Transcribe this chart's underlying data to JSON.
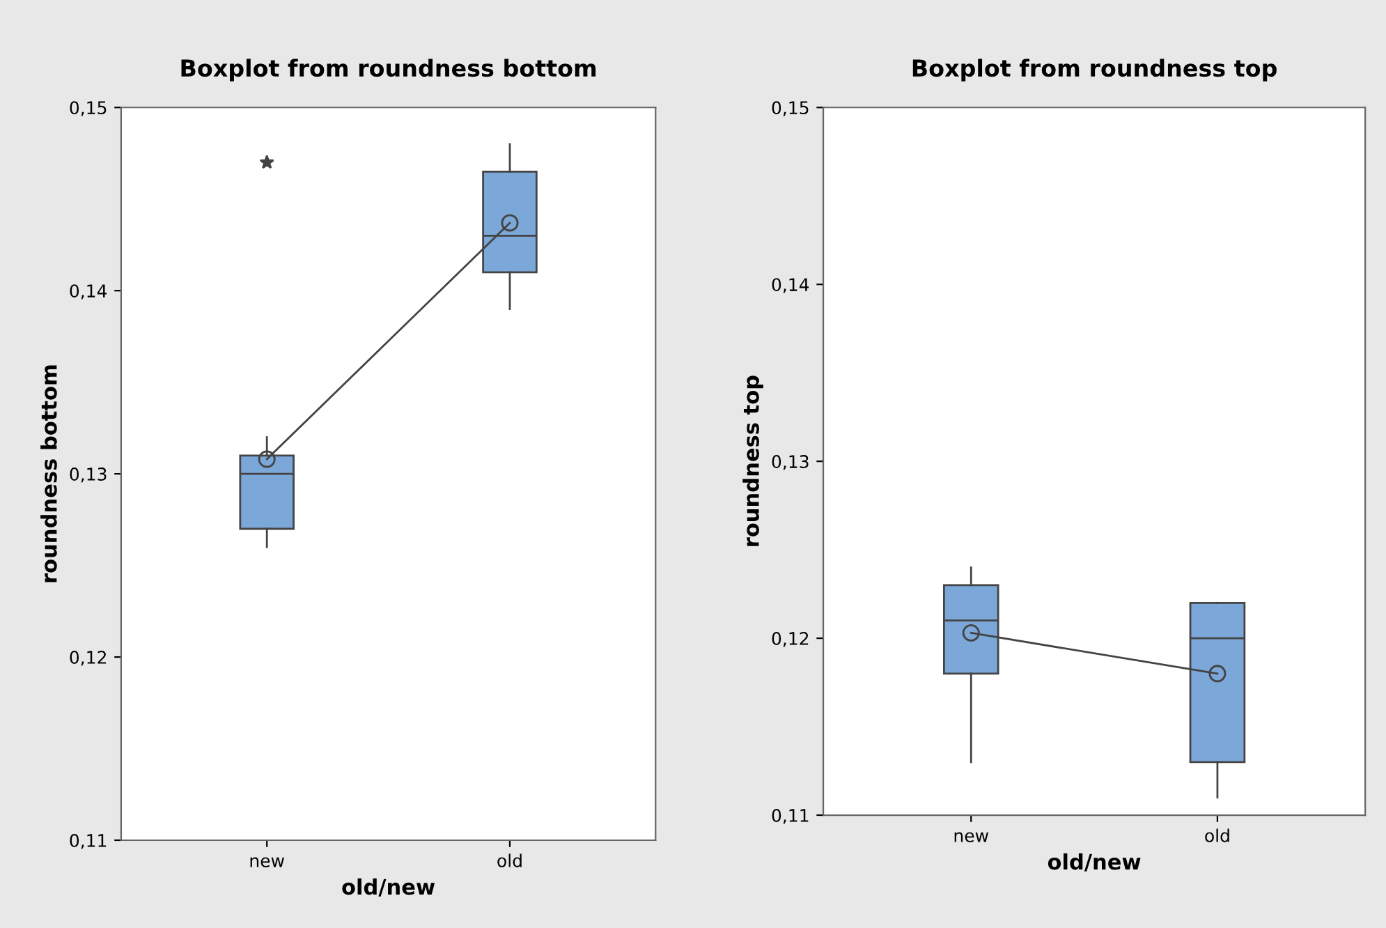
{
  "chart_data": [
    {
      "type": "box",
      "title": "Boxplot from roundness bottom",
      "xlabel": "old/new",
      "ylabel": "roundness bottom",
      "categories": [
        "new",
        "old"
      ],
      "color": "#7ba7d9",
      "boxes": [
        {
          "low": 0.126,
          "q1": 0.127,
          "median": 0.13,
          "q3": 0.131,
          "high": 0.132,
          "outliers": [
            0.147
          ]
        },
        {
          "low": 0.139,
          "q1": 0.141,
          "median": 0.143,
          "q3": 0.1465,
          "high": 0.148
        }
      ],
      "series": [
        {
          "type": "line",
          "values": [
            0.1308,
            0.1437
          ],
          "color": "#444444",
          "marker": "circle"
        }
      ],
      "ylim": [
        0.11,
        0.15
      ],
      "yticks": [
        {
          "value": 0.11,
          "label": "0,11"
        },
        {
          "value": 0.12,
          "label": "0,12"
        },
        {
          "value": 0.13,
          "label": "0,13"
        },
        {
          "value": 0.14,
          "label": "0,14"
        },
        {
          "value": 0.15,
          "label": "0,15"
        }
      ],
      "grid": false,
      "legend": false
    },
    {
      "type": "box",
      "title": "Boxplot from roundness top",
      "xlabel": "old/new",
      "ylabel": "roundness top",
      "categories": [
        "new",
        "old"
      ],
      "color": "#7ba7d9",
      "boxes": [
        {
          "low": 0.113,
          "q1": 0.118,
          "median": 0.121,
          "q3": 0.123,
          "high": 0.124
        },
        {
          "low": 0.111,
          "q1": 0.113,
          "median": 0.12,
          "q3": 0.122,
          "high": 0.122
        }
      ],
      "series": [
        {
          "type": "line",
          "values": [
            0.1203,
            0.118
          ],
          "color": "#444444",
          "marker": "circle"
        }
      ],
      "ylim": [
        0.11,
        0.15
      ],
      "yticks": [
        {
          "value": 0.11,
          "label": "0,11"
        },
        {
          "value": 0.12,
          "label": "0,12"
        },
        {
          "value": 0.13,
          "label": "0,13"
        },
        {
          "value": 0.14,
          "label": "0,14"
        },
        {
          "value": 0.15,
          "label": "0,15"
        }
      ],
      "grid": false,
      "legend": false
    }
  ]
}
